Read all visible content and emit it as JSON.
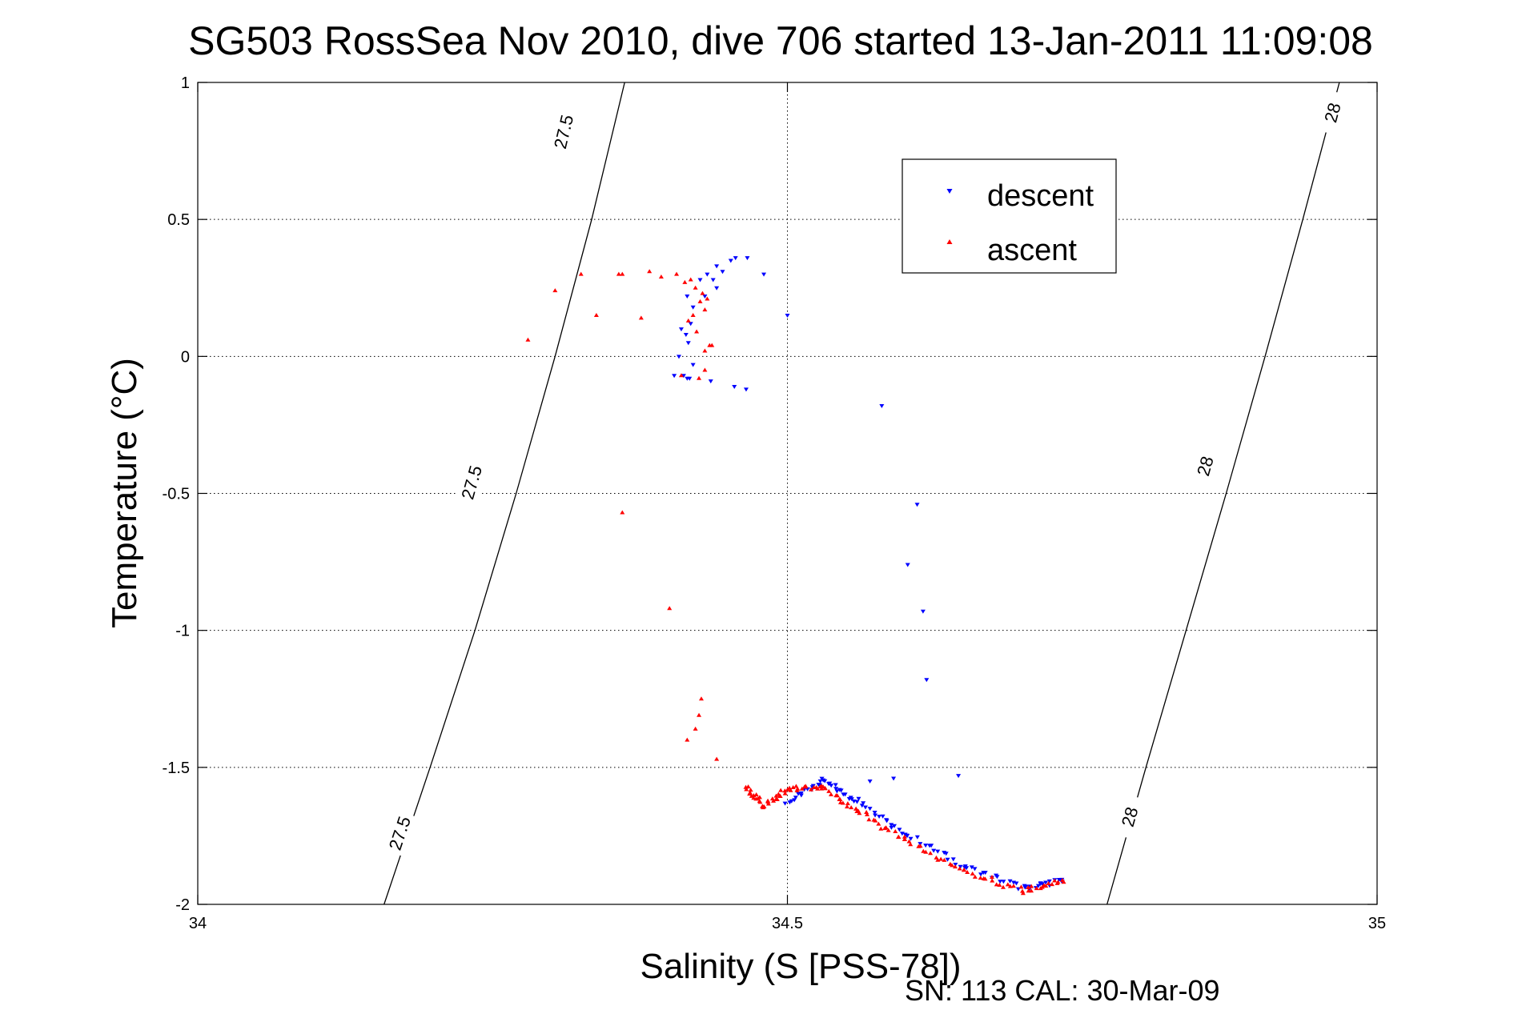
{
  "chart_data": {
    "type": "scatter",
    "title": "SG503 RossSea Nov 2010, dive 706 started 13-Jan-2011 11:09:08",
    "xlabel": "Salinity (S [PSS-78])",
    "ylabel": "Temperature (°C)",
    "xlim": [
      34,
      35
    ],
    "ylim": [
      -2,
      1
    ],
    "xticks": [
      34,
      34.5,
      35
    ],
    "xtick_labels": [
      "34",
      "34.5",
      "35"
    ],
    "yticks": [
      1,
      0.5,
      0,
      -0.5,
      -1,
      -1.5,
      -2
    ],
    "ytick_labels": [
      "1",
      "0.5",
      "0",
      "-0.5",
      "-1",
      "-1.5",
      "-2"
    ],
    "grid": true,
    "legend_position": "top-right",
    "footer": "SN: 113  CAL: 30-Mar-09",
    "isopycnals": [
      {
        "label": "27.5",
        "points": [
          [
            34.158,
            -2.0
          ],
          [
            34.197,
            -1.5
          ],
          [
            34.235,
            -1.0
          ],
          [
            34.27,
            -0.5
          ],
          [
            34.303,
            0.0
          ],
          [
            34.334,
            0.5
          ],
          [
            34.362,
            1.0
          ]
        ],
        "label_positions": [
          [
            34.171,
            -1.74
          ],
          [
            34.232,
            -0.46
          ],
          [
            34.31,
            0.82
          ]
        ]
      },
      {
        "label": "28",
        "points": [
          [
            34.771,
            -2.0
          ],
          [
            34.804,
            -1.5
          ],
          [
            34.838,
            -1.0
          ],
          [
            34.872,
            -0.5
          ],
          [
            34.905,
            0.0
          ],
          [
            34.937,
            0.5
          ],
          [
            34.968,
            1.0
          ]
        ],
        "label_positions": [
          [
            34.79,
            -1.68
          ],
          [
            34.854,
            -0.4
          ],
          [
            34.962,
            0.89
          ]
        ]
      }
    ],
    "series": [
      {
        "name": "descent",
        "color": "#0000ff",
        "marker": "triangle-down",
        "x": [
          34.48,
          34.466,
          34.456,
          34.452,
          34.44,
          34.445,
          34.432,
          34.437,
          34.426,
          34.44,
          34.43,
          34.415,
          34.42,
          34.418,
          34.41,
          34.414,
          34.416,
          34.408,
          34.42,
          34.412,
          34.415,
          34.404,
          34.417,
          34.435,
          34.455,
          34.465,
          34.5,
          34.58,
          34.61,
          34.602,
          34.615,
          34.618,
          34.645,
          34.59,
          34.57
        ],
        "y": [
          0.3,
          0.36,
          0.36,
          0.35,
          0.33,
          0.31,
          0.3,
          0.28,
          0.28,
          0.25,
          0.22,
          0.22,
          0.18,
          0.12,
          0.1,
          0.08,
          0.05,
          0.0,
          -0.03,
          -0.07,
          -0.08,
          -0.07,
          -0.08,
          -0.09,
          -0.11,
          -0.12,
          0.15,
          -0.18,
          -0.54,
          -0.76,
          -0.93,
          -1.18,
          -1.53,
          -1.54,
          -1.55
        ],
        "bands": [
          {
            "x_start": 34.5,
            "y_start": -1.63,
            "x_end": 34.53,
            "y_end": -1.55
          },
          {
            "x_start": 34.53,
            "y_start": -1.55,
            "x_end": 34.56,
            "y_end": -1.62
          },
          {
            "x_start": 34.56,
            "y_start": -1.62,
            "x_end": 34.6,
            "y_end": -1.74
          },
          {
            "x_start": 34.6,
            "y_start": -1.74,
            "x_end": 34.65,
            "y_end": -1.86
          },
          {
            "x_start": 34.65,
            "y_start": -1.86,
            "x_end": 34.7,
            "y_end": -1.94
          },
          {
            "x_start": 34.7,
            "y_start": -1.94,
            "x_end": 34.735,
            "y_end": -1.91
          }
        ]
      },
      {
        "name": "ascent",
        "color": "#ff0000",
        "marker": "triangle-up",
        "x": [
          34.28,
          34.303,
          34.325,
          34.36,
          34.383,
          34.393,
          34.406,
          34.413,
          34.418,
          34.422,
          34.428,
          34.426,
          34.432,
          34.43,
          34.42,
          34.416,
          34.423,
          34.434,
          34.436,
          34.43,
          34.41,
          34.425,
          34.43,
          34.357,
          34.376,
          34.338,
          34.36,
          34.4,
          34.427,
          34.425,
          34.422,
          34.415,
          34.44
        ],
        "y": [
          0.06,
          0.24,
          0.3,
          0.3,
          0.31,
          0.29,
          0.3,
          0.27,
          0.28,
          0.25,
          0.23,
          0.2,
          0.21,
          0.17,
          0.15,
          0.13,
          0.09,
          0.04,
          0.04,
          0.02,
          -0.07,
          -0.08,
          -0.05,
          0.3,
          0.14,
          0.15,
          -0.57,
          -0.92,
          -1.25,
          -1.31,
          -1.36,
          -1.4,
          -1.47
        ],
        "bands": [
          {
            "x_start": 34.465,
            "y_start": -1.57,
            "x_end": 34.48,
            "y_end": -1.64
          },
          {
            "x_start": 34.48,
            "y_start": -1.64,
            "x_end": 34.5,
            "y_end": -1.58
          },
          {
            "x_start": 34.5,
            "y_start": -1.58,
            "x_end": 34.53,
            "y_end": -1.57
          },
          {
            "x_start": 34.53,
            "y_start": -1.57,
            "x_end": 34.56,
            "y_end": -1.66
          },
          {
            "x_start": 34.56,
            "y_start": -1.66,
            "x_end": 34.6,
            "y_end": -1.77
          },
          {
            "x_start": 34.6,
            "y_start": -1.77,
            "x_end": 34.65,
            "y_end": -1.88
          },
          {
            "x_start": 34.65,
            "y_start": -1.88,
            "x_end": 34.7,
            "y_end": -1.95
          },
          {
            "x_start": 34.7,
            "y_start": -1.95,
            "x_end": 34.735,
            "y_end": -1.91
          }
        ]
      }
    ]
  }
}
